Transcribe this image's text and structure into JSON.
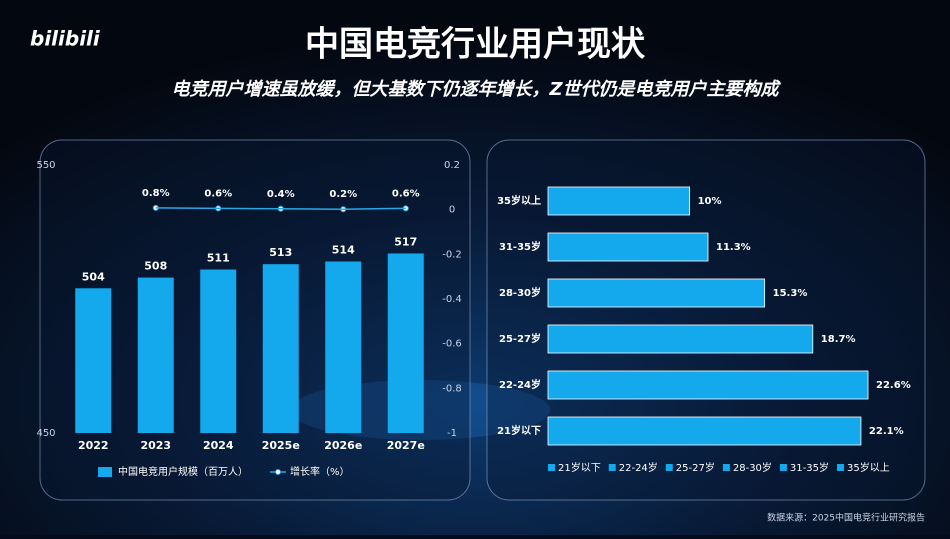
{
  "header": {
    "logo": "bilibili",
    "title": "中国电竞行业用户现状",
    "subtitle": "电竞用户增速虽放缓，但大基数下仍逐年增长，Z世代仍是电竞用户主要构成"
  },
  "source": "数据来源：2025中国电竞行业研究报告",
  "chart_data": [
    {
      "type": "bar",
      "categories": [
        "2022",
        "2023",
        "2024",
        "2025e",
        "2026e",
        "2027e"
      ],
      "series": [
        {
          "name": "中国电竞用户规模（百万人）",
          "color": "#14a8ec",
          "values": [
            504,
            508,
            511,
            513,
            514,
            517
          ]
        },
        {
          "name": "增长率（%）",
          "type": "line",
          "axis": "y2",
          "color": "#2aa8e6",
          "values": [
            null,
            0.008,
            0.006,
            0.004,
            0.002,
            0.006
          ],
          "value_labels": [
            null,
            "0.8%",
            "0.6%",
            "0.4%",
            "0.2%",
            "0.6%"
          ]
        }
      ],
      "ylim": [
        450,
        550
      ],
      "yticks": [
        450,
        550
      ],
      "y2lim": [
        -1,
        0.2
      ],
      "y2ticks": [
        0.2,
        0,
        -0.2,
        -0.4,
        -0.6,
        -0.8,
        -1
      ],
      "legend": "bottom"
    },
    {
      "type": "hbar",
      "categories": [
        "21岁以下",
        "22-24岁",
        "25-27岁",
        "28-30岁",
        "31-35岁",
        "35岁以上"
      ],
      "values": [
        22.1,
        22.6,
        18.7,
        15.3,
        11.3,
        10
      ],
      "value_labels": [
        "22.1%",
        "22.6%",
        "18.7%",
        "15.3%",
        "11.3%",
        "10%"
      ],
      "color": "#14a8ec",
      "xlim": [
        0,
        25
      ],
      "legend": "bottom"
    }
  ]
}
